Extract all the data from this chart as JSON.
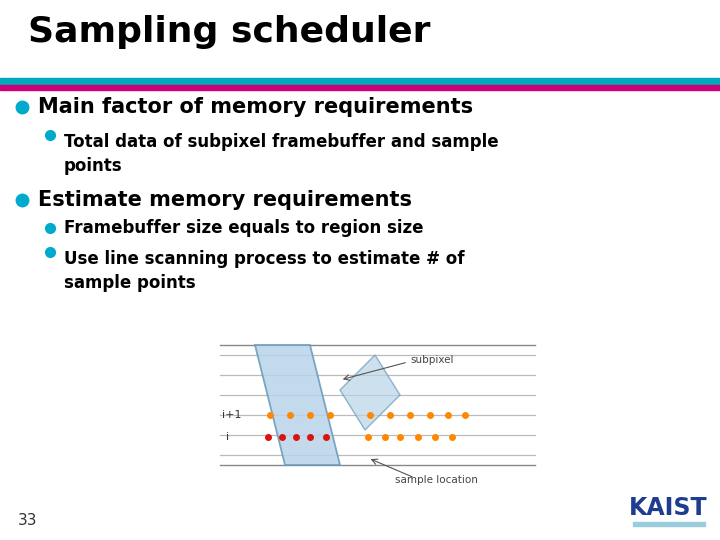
{
  "title": "Sampling scheduler",
  "bg_color": "#ffffff",
  "title_color": "#000000",
  "title_fontsize": 26,
  "bar1_color": "#00aacc",
  "bar2_color": "#cc0077",
  "bullet_color": "#00aacc",
  "bullet1_text": "Main factor of memory requirements",
  "bullet1_sub": [
    "Total data of subpixel framebuffer and sample\npoints"
  ],
  "bullet2_text": "Estimate memory requirements",
  "bullet2_sub_1": "Framebuffer size equals to region size",
  "bullet2_sub_2": "Use line scanning process to estimate # of\nsample points",
  "page_number": "33",
  "kaist_color": "#1e3d8f",
  "line1_color": "#00aabb",
  "line2_color": "#cc0077"
}
